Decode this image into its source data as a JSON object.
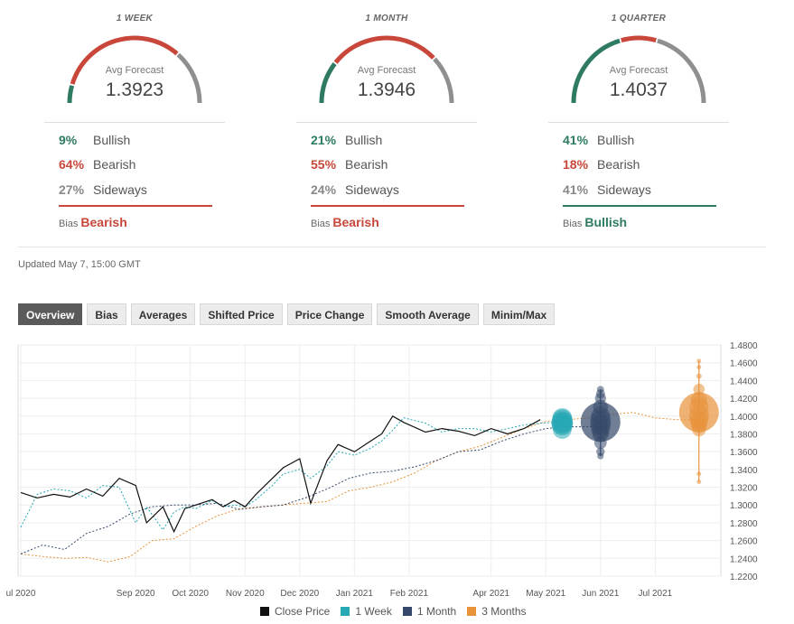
{
  "forecasts": [
    {
      "period": "1 WEEK",
      "avg_label": "Avg Forecast",
      "avg": "1.3923",
      "bullish_pct": "9%",
      "bearish_pct": "64%",
      "sideways_pct": "27%",
      "bullish_label": "Bullish",
      "bearish_label": "Bearish",
      "sideways_label": "Sideways",
      "bias_label": "Bias",
      "bias": "Bearish",
      "bias_color": "#c8473a",
      "gauge": {
        "bullish": 0.09,
        "bearish": 0.64,
        "sideways": 0.27
      }
    },
    {
      "period": "1 MONTH",
      "avg_label": "Avg Forecast",
      "avg": "1.3946",
      "bullish_pct": "21%",
      "bearish_pct": "55%",
      "sideways_pct": "24%",
      "bullish_label": "Bullish",
      "bearish_label": "Bearish",
      "sideways_label": "Sideways",
      "bias_label": "Bias",
      "bias": "Bearish",
      "bias_color": "#c8473a",
      "gauge": {
        "bullish": 0.21,
        "bearish": 0.55,
        "sideways": 0.24
      }
    },
    {
      "period": "1 QUARTER",
      "avg_label": "Avg Forecast",
      "avg": "1.4037",
      "bullish_pct": "41%",
      "bearish_pct": "18%",
      "sideways_pct": "41%",
      "bullish_label": "Bullish",
      "bearish_label": "Bearish",
      "sideways_label": "Sideways",
      "bias_label": "Bias",
      "bias": "Bullish",
      "bias_color": "#2e7a63",
      "gauge": {
        "bullish": 0.41,
        "bearish": 0.18,
        "sideways": 0.41
      }
    }
  ],
  "colors": {
    "bullish": "#2e7a63",
    "bearish": "#c8473a",
    "sideways": "#8f8f8f"
  },
  "updated": "Updated May 7, 15:00 GMT",
  "tabs": [
    "Overview",
    "Bias",
    "Averages",
    "Shifted Price",
    "Price Change",
    "Smooth Average",
    "Minim/Max"
  ],
  "active_tab": "Overview",
  "chart_data": {
    "type": "line",
    "y_ticks": [
      "1.4800",
      "1.4600",
      "1.4400",
      "1.4200",
      "1.4000",
      "1.3800",
      "1.3600",
      "1.3400",
      "1.3200",
      "1.3000",
      "1.2800",
      "1.2600",
      "1.2400",
      "1.2200"
    ],
    "ylim": [
      1.22,
      1.48
    ],
    "x_ticks": [
      "ul 2020",
      "Sep 2020",
      "Oct 2020",
      "Nov 2020",
      "Dec 2020",
      "Jan 2021",
      "Feb 2021",
      "Apr 2021",
      "May 2021",
      "Jun 2021",
      "Jul 2021"
    ],
    "x_tick_months": [
      0.4,
      2.5,
      3.5,
      4.5,
      5.5,
      6.5,
      7.5,
      9.0,
      10.0,
      11.0,
      12.0
    ],
    "x_range_months": [
      0.35,
      13.2
    ],
    "grid": true,
    "legend_position": "bottom-center",
    "series": [
      {
        "name": "Close Price",
        "color": "#111111",
        "style": "solid",
        "x": [
          0.4,
          0.7,
          1.0,
          1.3,
          1.6,
          1.9,
          2.2,
          2.5,
          2.7,
          3.0,
          3.2,
          3.4,
          3.6,
          3.9,
          4.1,
          4.3,
          4.5,
          4.7,
          5.0,
          5.2,
          5.5,
          5.7,
          6.0,
          6.2,
          6.5,
          6.8,
          7.0,
          7.2,
          7.4,
          7.8,
          8.1,
          8.4,
          8.7,
          9.0,
          9.3,
          9.6,
          9.9
        ],
        "values": [
          1.314,
          1.308,
          1.312,
          1.309,
          1.318,
          1.31,
          1.33,
          1.322,
          1.28,
          1.298,
          1.27,
          1.296,
          1.3,
          1.306,
          1.298,
          1.305,
          1.298,
          1.312,
          1.33,
          1.342,
          1.352,
          1.302,
          1.35,
          1.368,
          1.36,
          1.372,
          1.38,
          1.4,
          1.393,
          1.382,
          1.386,
          1.383,
          1.378,
          1.386,
          1.38,
          1.386,
          1.396
        ]
      },
      {
        "name": "1 Week",
        "color": "#26a8b5",
        "style": "dotted",
        "x": [
          0.4,
          0.7,
          1.0,
          1.3,
          1.6,
          1.9,
          2.2,
          2.5,
          2.7,
          3.0,
          3.2,
          3.4,
          3.6,
          3.9,
          4.1,
          4.3,
          4.5,
          4.7,
          5.0,
          5.2,
          5.5,
          5.7,
          6.0,
          6.2,
          6.5,
          6.8,
          7.0,
          7.2,
          7.4,
          7.8,
          8.1,
          8.4,
          8.7,
          9.0,
          9.3,
          9.6,
          9.9,
          10.2
        ],
        "values": [
          1.275,
          1.312,
          1.318,
          1.316,
          1.308,
          1.322,
          1.32,
          1.28,
          1.298,
          1.272,
          1.292,
          1.298,
          1.296,
          1.305,
          1.298,
          1.3,
          1.298,
          1.306,
          1.322,
          1.335,
          1.34,
          1.33,
          1.344,
          1.36,
          1.356,
          1.364,
          1.372,
          1.384,
          1.398,
          1.392,
          1.382,
          1.386,
          1.386,
          1.382,
          1.386,
          1.39,
          1.392,
          1.393
        ]
      },
      {
        "name": "1 Month",
        "color": "#34486a",
        "style": "dotted",
        "x": [
          0.4,
          0.8,
          1.2,
          1.6,
          2.0,
          2.4,
          2.8,
          3.2,
          3.6,
          4.0,
          4.4,
          4.8,
          5.2,
          5.6,
          6.0,
          6.4,
          6.8,
          7.2,
          7.6,
          8.0,
          8.4,
          8.8,
          9.2,
          9.6,
          10.0,
          10.4,
          10.8,
          11.0
        ],
        "values": [
          1.245,
          1.255,
          1.25,
          1.268,
          1.276,
          1.29,
          1.298,
          1.3,
          1.3,
          1.302,
          1.295,
          1.298,
          1.3,
          1.308,
          1.318,
          1.33,
          1.336,
          1.338,
          1.343,
          1.35,
          1.36,
          1.362,
          1.372,
          1.38,
          1.386,
          1.388,
          1.388,
          1.39
        ]
      },
      {
        "name": "3 Months",
        "color": "#e8923a",
        "style": "dotted",
        "x": [
          0.4,
          0.8,
          1.2,
          1.6,
          2.0,
          2.4,
          2.8,
          3.2,
          3.6,
          4.0,
          4.4,
          4.8,
          5.2,
          5.6,
          6.0,
          6.4,
          6.8,
          7.2,
          7.6,
          8.0,
          8.4,
          8.8,
          9.2,
          9.6,
          10.0,
          10.4,
          10.8,
          11.2,
          11.6,
          12.0,
          12.4,
          12.8
        ],
        "values": [
          1.245,
          1.242,
          1.24,
          1.241,
          1.236,
          1.242,
          1.26,
          1.262,
          1.276,
          1.288,
          1.296,
          1.298,
          1.3,
          1.302,
          1.304,
          1.316,
          1.32,
          1.326,
          1.336,
          1.35,
          1.36,
          1.366,
          1.376,
          1.386,
          1.394,
          1.396,
          1.398,
          1.402,
          1.404,
          1.398,
          1.396,
          1.396
        ]
      }
    ],
    "forecast_bubbles": [
      {
        "series": "1 Week",
        "x": 10.3,
        "values": [
          1.398,
          1.393,
          1.39,
          1.385,
          1.392,
          1.396
        ],
        "color": "#26a8b5"
      },
      {
        "series": "1 Month",
        "x": 11.0,
        "values": [
          1.43,
          1.425,
          1.42,
          1.41,
          1.4,
          1.395,
          1.39,
          1.385,
          1.38,
          1.37,
          1.36,
          1.355
        ],
        "color": "#34486a"
      },
      {
        "series": "3 Months",
        "x": 12.8,
        "values": [
          1.462,
          1.455,
          1.445,
          1.43,
          1.418,
          1.41,
          1.4,
          1.395,
          1.39,
          1.385,
          1.335,
          1.326
        ],
        "color": "#e8923a"
      }
    ]
  },
  "legend": [
    "Close Price",
    "1 Week",
    "1 Month",
    "3 Months"
  ]
}
